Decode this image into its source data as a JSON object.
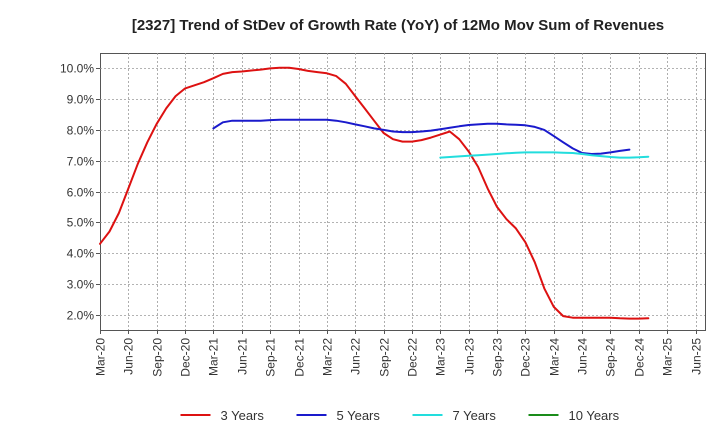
{
  "chart_data": {
    "type": "line",
    "title": "[2327]  Trend of StDev of Growth Rate (YoY) of 12Mo Mov Sum of Revenues",
    "xlabel": "",
    "ylabel": "",
    "ylim": [
      1.5,
      10.5
    ],
    "yticks": [
      2.0,
      3.0,
      4.0,
      5.0,
      6.0,
      7.0,
      8.0,
      9.0,
      10.0
    ],
    "ytick_labels": [
      "2.0%",
      "3.0%",
      "4.0%",
      "5.0%",
      "6.0%",
      "7.0%",
      "8.0%",
      "9.0%",
      "10.0%"
    ],
    "x_start": "Mar-20",
    "x_count": 64,
    "xtick_labels": [
      "Mar-20",
      "Jun-20",
      "Sep-20",
      "Dec-20",
      "Mar-21",
      "Jun-21",
      "Sep-21",
      "Dec-21",
      "Mar-22",
      "Jun-22",
      "Sep-22",
      "Dec-22",
      "Mar-23",
      "Jun-23",
      "Sep-23",
      "Dec-23",
      "Mar-24",
      "Jun-24",
      "Sep-24",
      "Dec-24",
      "Mar-25",
      "Jun-25"
    ],
    "grid": true,
    "legend_position": "bottom",
    "series": [
      {
        "name": "3 Years",
        "color": "#dd1111",
        "start_index": 0,
        "values": [
          4.3,
          4.7,
          5.3,
          6.1,
          6.9,
          7.6,
          8.2,
          8.7,
          9.1,
          9.35,
          9.45,
          9.55,
          9.68,
          9.82,
          9.88,
          9.9,
          9.93,
          9.96,
          10.0,
          10.02,
          10.02,
          9.98,
          9.92,
          9.88,
          9.84,
          9.75,
          9.5,
          9.1,
          8.7,
          8.3,
          7.9,
          7.7,
          7.62,
          7.62,
          7.67,
          7.75,
          7.85,
          7.95,
          7.7,
          7.3,
          6.8,
          6.1,
          5.5,
          5.1,
          4.8,
          4.35,
          3.7,
          2.85,
          2.25,
          1.95,
          1.9,
          1.9,
          1.9,
          1.9,
          1.9,
          1.88,
          1.87,
          1.87,
          1.88
        ]
      },
      {
        "name": "5 Years",
        "color": "#1a1acc",
        "start_index": 12,
        "values": [
          8.05,
          8.25,
          8.3,
          8.3,
          8.3,
          8.3,
          8.32,
          8.33,
          8.33,
          8.33,
          8.33,
          8.33,
          8.33,
          8.3,
          8.25,
          8.18,
          8.12,
          8.05,
          8.0,
          7.95,
          7.93,
          7.93,
          7.95,
          7.98,
          8.02,
          8.07,
          8.12,
          8.16,
          8.18,
          8.2,
          8.2,
          8.18,
          8.17,
          8.15,
          8.1,
          8.0,
          7.8,
          7.6,
          7.4,
          7.25,
          7.22,
          7.23,
          7.27,
          7.32,
          7.36
        ]
      },
      {
        "name": "7 Years",
        "color": "#22dddd",
        "start_index": 36,
        "values": [
          7.1,
          7.12,
          7.14,
          7.16,
          7.18,
          7.2,
          7.22,
          7.24,
          7.26,
          7.27,
          7.27,
          7.27,
          7.27,
          7.26,
          7.25,
          7.22,
          7.18,
          7.15,
          7.12,
          7.1,
          7.1,
          7.11,
          7.13
        ]
      },
      {
        "name": "10 Years",
        "color": "#1a8c1a",
        "start_index": 0,
        "values": []
      }
    ]
  }
}
